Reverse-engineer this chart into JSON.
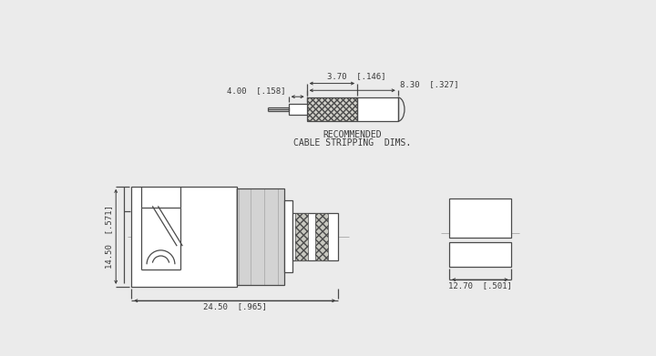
{
  "bg_color": "#ebebeb",
  "line_color": "#4a4a4a",
  "text_color": "#3a3a3a",
  "dim_labels": {
    "top_3_70": "3.70  [.146]",
    "top_4_00": "4.00  [.158]",
    "top_8_30": "8.30  [.327]",
    "bot_14_50": "14.50  [.571]",
    "bot_24_50": "24.50  [.965]",
    "side_12_70": "12.70  [.501]"
  },
  "note": [
    "RECOMMENDED",
    "CABLE STRIPPING  DIMS."
  ]
}
